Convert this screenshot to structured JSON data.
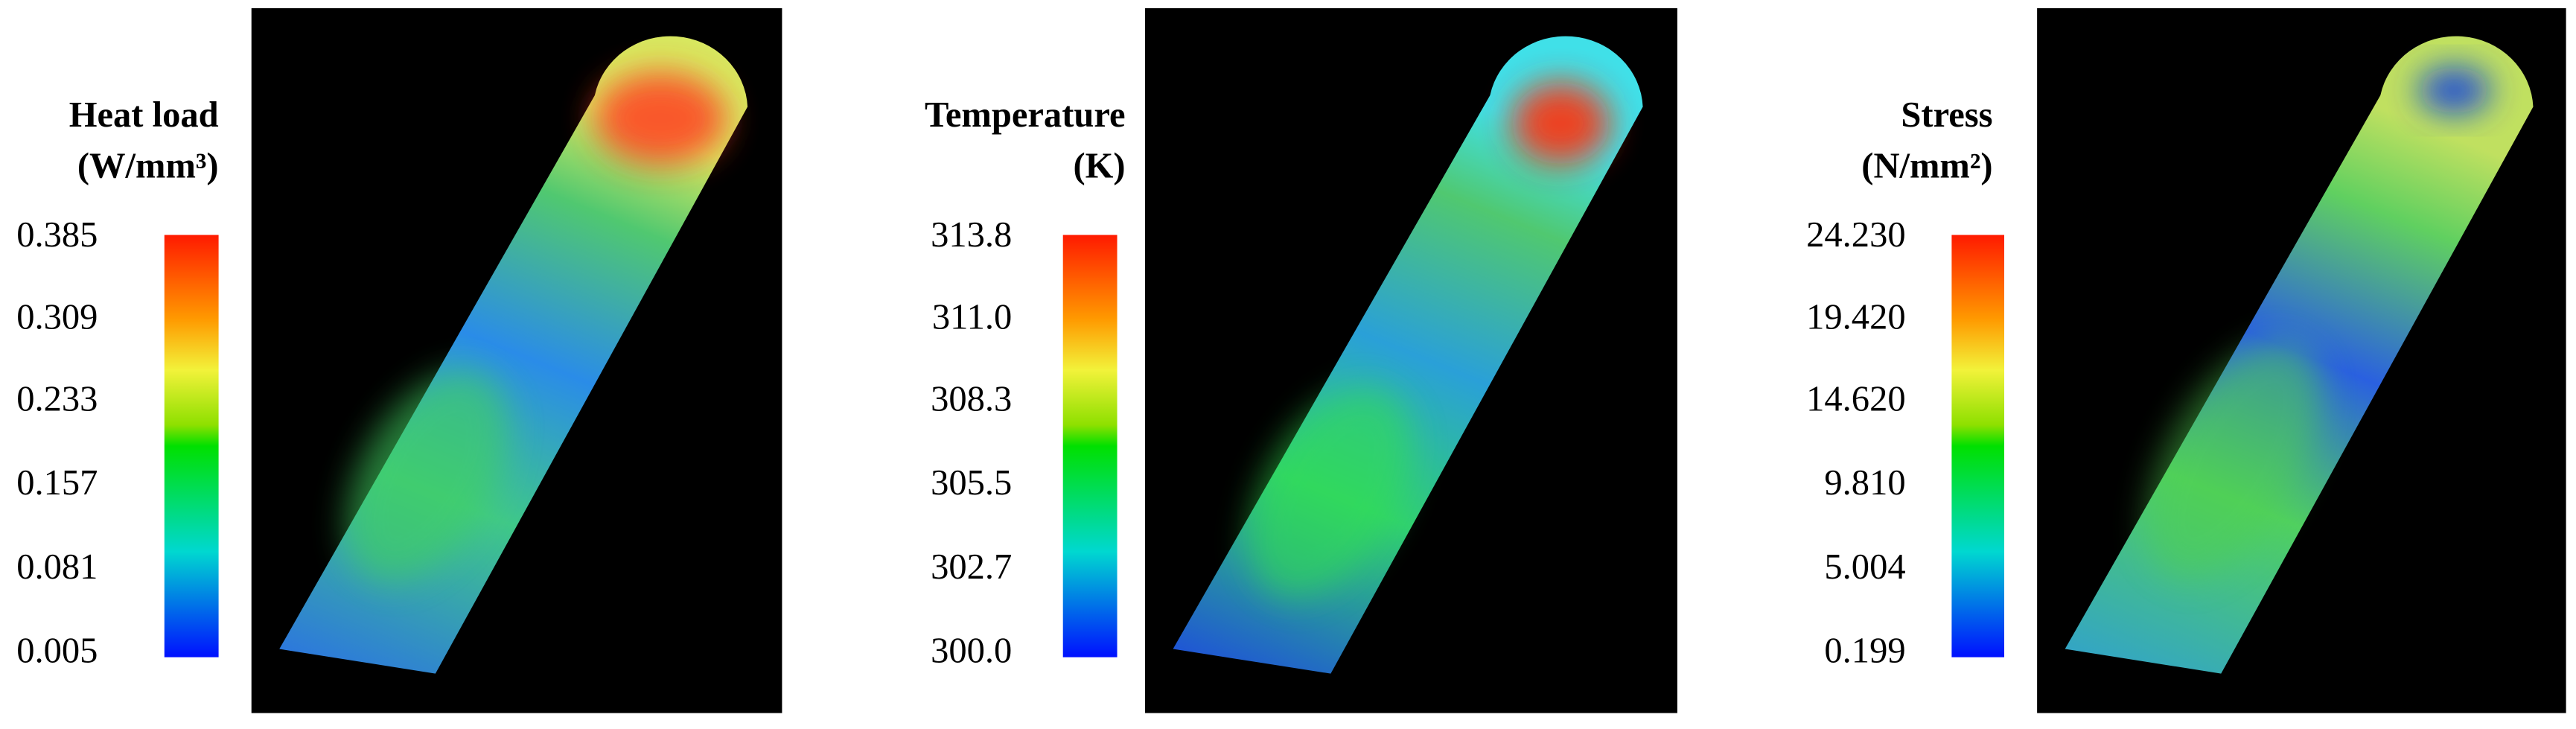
{
  "panels": [
    {
      "title": "Heat load",
      "unit": "(W/mm³)",
      "ticks": [
        "0.385",
        "0.309",
        "0.233",
        "0.157",
        "0.081",
        "0.005"
      ]
    },
    {
      "title": "Temperature",
      "unit": "(K)",
      "ticks": [
        "313.8",
        "311.0",
        "308.3",
        "305.5",
        "302.7",
        "300.0"
      ]
    },
    {
      "title": "Stress",
      "unit": "(N/mm²)",
      "ticks": [
        "24.230",
        "19.420",
        "14.620",
        "9.810",
        "5.004",
        "0.199"
      ]
    }
  ]
}
